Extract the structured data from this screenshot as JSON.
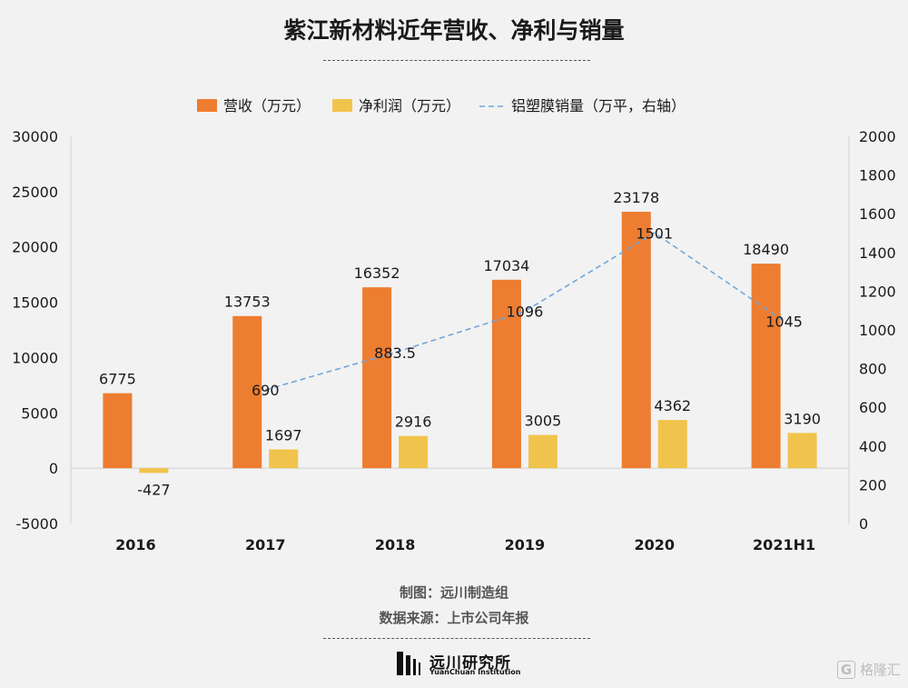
{
  "header": {
    "title": "紫江新材料近年营收、净利与销量"
  },
  "footer": {
    "credit": "制图：远川制造组",
    "source": "数据来源：上市公司年报",
    "logo_cn": "远川研究所",
    "logo_en": "YuanChuan Institution",
    "watermark": "格隆汇"
  },
  "chart_data": {
    "type": "bar",
    "categories": [
      "2016",
      "2017",
      "2018",
      "2019",
      "2020",
      "2021H1"
    ],
    "series": [
      {
        "name": "营收（万元）",
        "kind": "bar",
        "axis": "left",
        "color": "#ed7d31",
        "values": [
          6775,
          13753,
          16352,
          17034,
          23178,
          18490
        ]
      },
      {
        "name": "净利润（万元）",
        "kind": "bar",
        "axis": "left",
        "color": "#f0c44c",
        "values": [
          -427,
          1697,
          2916,
          3005,
          4362,
          3190
        ]
      },
      {
        "name": "铝塑膜销量（万平，右轴）",
        "kind": "line",
        "axis": "right",
        "color": "#6fa6dc",
        "x": [
          "2017",
          "2018",
          "2019",
          "2020",
          "2021H1"
        ],
        "values": [
          690,
          883.5,
          1096,
          1501,
          1045
        ]
      }
    ],
    "data_labels": {
      "revenue": [
        "6775",
        "13753",
        "16352",
        "17034",
        "23178",
        "18490"
      ],
      "profit": [
        "-427",
        "1697",
        "2916",
        "3005",
        "4362",
        "3190"
      ],
      "volume": [
        "690",
        "883.5",
        "1096",
        "1501",
        "1045"
      ]
    },
    "y_left": {
      "ylim": [
        -5000,
        30000
      ],
      "ticks": [
        "-5000",
        "0",
        "5000",
        "10000",
        "15000",
        "20000",
        "25000",
        "30000"
      ]
    },
    "y_right": {
      "ylim": [
        0,
        2000
      ],
      "ticks": [
        "0",
        "200",
        "400",
        "600",
        "800",
        "1000",
        "1200",
        "1400",
        "1600",
        "1800",
        "2000"
      ]
    },
    "grid": false,
    "legend": "top-center"
  }
}
